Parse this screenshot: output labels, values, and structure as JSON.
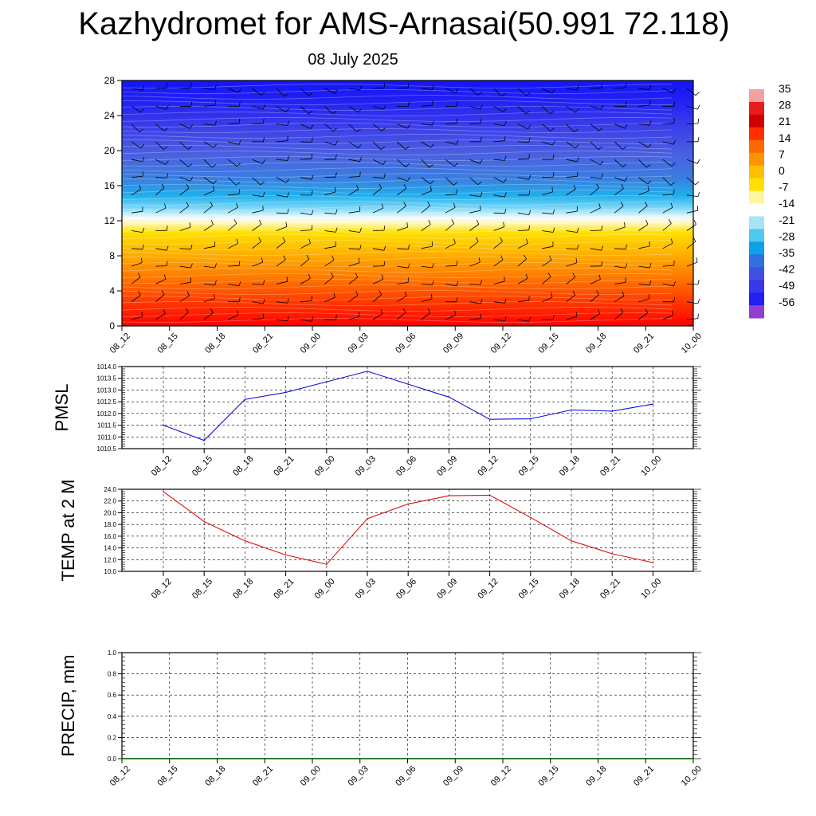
{
  "title": "Kazhydromet for AMS-Arnasai(50.991 72.118)",
  "subtitle": "08 July 2025",
  "colors": {
    "pmsl_line": "#1010e0",
    "temp_line": "#e01010",
    "precip_line": "#006400",
    "grid": "#000000"
  },
  "chart_data": [
    {
      "type": "heatmap",
      "title": "",
      "xlabel": "",
      "ylabel": "",
      "x_ticks": [
        "08_12",
        "08_15",
        "08_18",
        "08_21",
        "09_00",
        "09_03",
        "09_06",
        "09_09",
        "09_12",
        "09_15",
        "09_18",
        "09_21",
        "10_00"
      ],
      "y_ticks": [
        0,
        4,
        8,
        12,
        16,
        20,
        24,
        28
      ],
      "ylim": [
        0,
        28
      ],
      "colorbar_labels": [
        "35",
        "28",
        "21",
        "14",
        "7",
        "0",
        "-7",
        "-14",
        "-21",
        "-28",
        "-35",
        "-42",
        "-49",
        "-56"
      ],
      "colorbar_colors": [
        "#f4a0a0",
        "#e81c1c",
        "#d00000",
        "#ff3000",
        "#ff6a00",
        "#ff9400",
        "#ffbe00",
        "#ffe000",
        "#fff4a0",
        "#ffffff",
        "#a8e4f8",
        "#50c8f0",
        "#10a0e8",
        "#3070e0",
        "#4050e0",
        "#3838e8",
        "#2020f0",
        "#9040d0"
      ],
      "description_of_layers": "temperature shading with wind barbs; warm below ~12 km, cold above"
    },
    {
      "type": "line",
      "ylabel": "PMSL",
      "x_ticks": [
        "08_12",
        "08_15",
        "08_18",
        "08_21",
        "09_00",
        "09_03",
        "09_06",
        "09_09",
        "09_12",
        "09_15",
        "09_18",
        "09_21",
        "10_00"
      ],
      "y_ticks": [
        "1010.5",
        "1011.0",
        "1011.5",
        "1012.0",
        "1012.5",
        "1013.0",
        "1013.5",
        "1014.0"
      ],
      "ylim": [
        1010.5,
        1014.0
      ],
      "series": [
        {
          "values": [
            1011.5,
            1010.85,
            1012.6,
            1012.9,
            1013.35,
            1013.8,
            1013.25,
            1012.7,
            1011.75,
            1011.77,
            1012.15,
            1012.1,
            1012.4
          ]
        }
      ]
    },
    {
      "type": "line",
      "ylabel": "TEMP at 2 M",
      "x_ticks": [
        "08_12",
        "08_15",
        "08_18",
        "08_21",
        "09_00",
        "09_03",
        "09_06",
        "09_09",
        "09_12",
        "09_15",
        "09_18",
        "09_21",
        "10_00"
      ],
      "y_ticks": [
        "10.0",
        "12.0",
        "14.0",
        "16.0",
        "18.0",
        "20.0",
        "22.0",
        "24.0"
      ],
      "ylim": [
        10.0,
        24.0
      ],
      "series": [
        {
          "values": [
            23.6,
            18.5,
            15.2,
            12.8,
            11.2,
            19.0,
            21.5,
            22.9,
            23.0,
            19.2,
            15.2,
            13.0,
            11.5
          ]
        }
      ]
    },
    {
      "type": "line",
      "ylabel": "PRECIP, mm",
      "x_ticks": [
        "08_12",
        "08_15",
        "08_18",
        "08_21",
        "09_00",
        "09_03",
        "09_06",
        "09_09",
        "09_12",
        "09_15",
        "09_18",
        "09_21",
        "10_00"
      ],
      "y_ticks": [
        "0.0",
        "0.2",
        "0.4",
        "0.6",
        "0.8",
        "1.0"
      ],
      "ylim": [
        0.0,
        1.0
      ],
      "series": [
        {
          "values": [
            0,
            0,
            0,
            0,
            0,
            0,
            0,
            0,
            0,
            0,
            0,
            0,
            0
          ]
        }
      ]
    }
  ]
}
